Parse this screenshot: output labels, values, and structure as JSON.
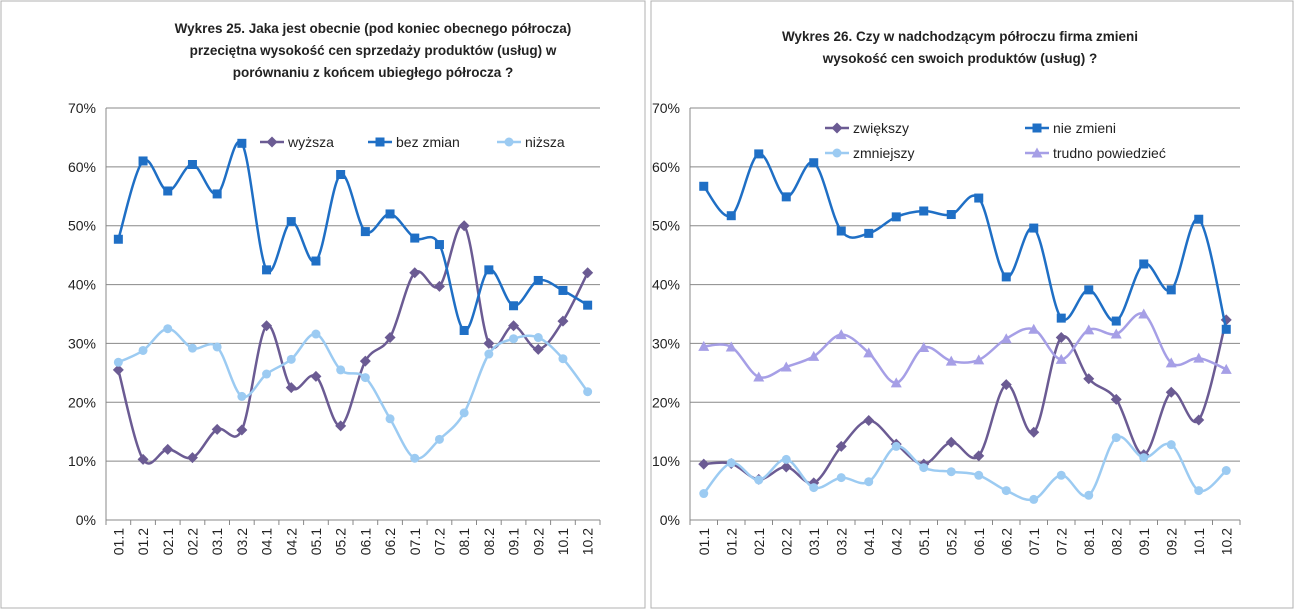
{
  "chart_data": [
    {
      "type": "line",
      "title": "Wykres 25. Jaka jest obecnie (pod koniec obecnego półrocza)\nprzeciętna wysokość cen  sprzedaży produktów (usług) w\nporównaniu z końcem ubiegłego półrocza ?",
      "categories": [
        "01.1",
        "01.2",
        "02.1",
        "02.2",
        "03.1",
        "03.2",
        "04.1",
        "04.2",
        "05.1",
        "05.2",
        "06.1",
        "06.2",
        "07.1",
        "07.2",
        "08.1",
        "08.2",
        "09.1",
        "09.2",
        "10.1",
        "10.2"
      ],
      "series": [
        {
          "name": "wyższa",
          "color": "#6b5b93",
          "marker": "diamond",
          "values": [
            25.5,
            10.3,
            12,
            10.6,
            15.4,
            15.3,
            33,
            22.5,
            24.4,
            16,
            27,
            31,
            42,
            39.7,
            50,
            30,
            33,
            29,
            33.8,
            42
          ]
        },
        {
          "name": "bez zmian",
          "color": "#1f6fc5",
          "marker": "square",
          "values": [
            47.7,
            61,
            55.9,
            60.4,
            55.4,
            64,
            42.5,
            50.7,
            44,
            58.7,
            49,
            52,
            47.9,
            46.8,
            32.2,
            42.5,
            36.4,
            40.7,
            39,
            36.5
          ]
        },
        {
          "name": "niższa",
          "color": "#9ccbf2",
          "marker": "circle",
          "values": [
            26.8,
            28.8,
            32.5,
            29.2,
            29.4,
            21,
            24.8,
            27.3,
            31.6,
            25.5,
            24.2,
            17.2,
            10.5,
            13.7,
            18.2,
            28.2,
            30.8,
            31,
            27.4,
            21.8
          ]
        }
      ],
      "ylim": [
        0,
        70
      ],
      "yticks": [
        {
          "value": 0,
          "label": "0%"
        },
        {
          "value": 10,
          "label": "10%"
        },
        {
          "value": 20,
          "label": "20%"
        },
        {
          "value": 30,
          "label": "30%"
        },
        {
          "value": 40,
          "label": "40%"
        },
        {
          "value": 50,
          "label": "50%"
        },
        {
          "value": 60,
          "label": "60%"
        },
        {
          "value": 70,
          "label": "70%"
        }
      ],
      "grid": true,
      "smooth": true
    },
    {
      "type": "line",
      "title": "Wykres 26. Czy w nadchodzącym półroczu firma zmieni\nwysokość cen swoich produktów (usług) ?",
      "categories": [
        "01.1",
        "01.2",
        "02.1",
        "02.2",
        "03.1",
        "03.2",
        "04.1",
        "04.2",
        "05.1",
        "05.2",
        "06.1",
        "06.2",
        "07.1",
        "07.2",
        "08.1",
        "08.2",
        "09.1",
        "09.2",
        "10.1",
        "10.2"
      ],
      "series": [
        {
          "name": "zwiększy",
          "color": "#6b5b93",
          "marker": "diamond",
          "values": [
            9.5,
            9.6,
            6.9,
            9,
            6.3,
            12.5,
            16.9,
            12.9,
            9.5,
            13.2,
            10.9,
            23,
            14.9,
            31,
            24,
            20.5,
            11.1,
            21.7,
            17,
            34
          ]
        },
        {
          "name": "nie zmieni",
          "color": "#1f6fc5",
          "marker": "square",
          "values": [
            56.7,
            51.7,
            62.2,
            54.9,
            60.7,
            49.1,
            48.7,
            51.5,
            52.5,
            51.9,
            54.7,
            41.3,
            49.6,
            34.3,
            39.1,
            33.8,
            43.5,
            39.1,
            51.1,
            32.4
          ]
        },
        {
          "name": "zmniejszy",
          "color": "#9ccbf2",
          "marker": "circle",
          "values": [
            4.5,
            9.7,
            6.8,
            10.3,
            5.5,
            7.2,
            6.5,
            12.5,
            8.9,
            8.2,
            7.6,
            5,
            3.5,
            7.6,
            4.2,
            14,
            10.6,
            12.8,
            5,
            8.4
          ]
        },
        {
          "name": "trudno powiedzieć",
          "color": "#a69fe6",
          "marker": "triangle",
          "values": [
            29.5,
            29.4,
            24.3,
            26,
            27.8,
            31.5,
            28.4,
            23.3,
            29.3,
            27,
            27.2,
            30.8,
            32.4,
            27.3,
            32.3,
            31.6,
            35,
            26.7,
            27.5,
            25.6
          ]
        }
      ],
      "ylim": [
        0,
        70
      ],
      "yticks": [
        {
          "value": 0,
          "label": "0%"
        },
        {
          "value": 10,
          "label": "10%"
        },
        {
          "value": 20,
          "label": "20%"
        },
        {
          "value": 30,
          "label": "30%"
        },
        {
          "value": 40,
          "label": "40%"
        },
        {
          "value": 50,
          "label": "50%"
        },
        {
          "value": 60,
          "label": "60%"
        },
        {
          "value": 70,
          "label": "70%"
        }
      ],
      "grid": true,
      "smooth": true
    }
  ]
}
